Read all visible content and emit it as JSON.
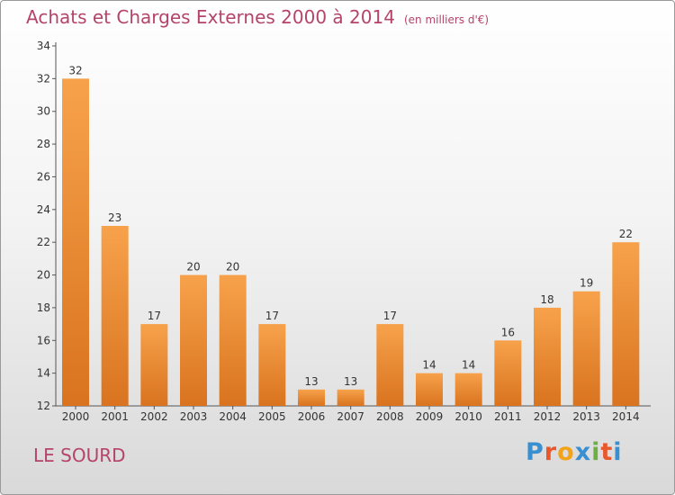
{
  "header": {
    "title": "Achats et Charges Externes 2000 à 2014",
    "subtitle": "(en milliers d'€)"
  },
  "commune": "LE SOURD",
  "logo": {
    "letters": [
      "P",
      "r",
      "o",
      "x",
      "i",
      "t",
      "i"
    ],
    "colors": [
      "#3a8fd1",
      "#e9572b",
      "#f2a31a",
      "#3a8fd1",
      "#6cb043",
      "#e9572b",
      "#3a8fd1"
    ]
  },
  "chart_data": {
    "type": "bar",
    "categories": [
      "2000",
      "2001",
      "2002",
      "2003",
      "2004",
      "2005",
      "2006",
      "2007",
      "2008",
      "2009",
      "2010",
      "2011",
      "2012",
      "2013",
      "2014"
    ],
    "values": [
      32,
      23,
      17,
      20,
      20,
      17,
      13,
      13,
      17,
      14,
      14,
      16,
      18,
      19,
      22
    ],
    "ylim": [
      12,
      34
    ],
    "yticks": [
      12,
      14,
      16,
      18,
      20,
      22,
      24,
      26,
      28,
      30,
      32,
      34
    ],
    "grid": false,
    "bar_color_top": "#f7a24b",
    "bar_color_bottom": "#d9731f"
  }
}
